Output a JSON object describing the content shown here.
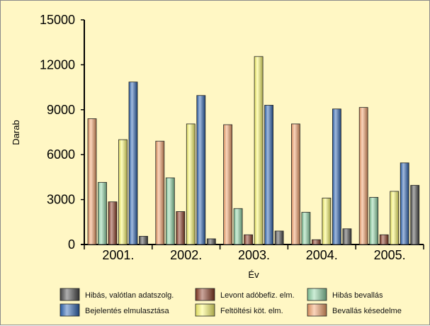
{
  "chart_data": {
    "type": "bar",
    "title": "",
    "xlabel": "Év",
    "ylabel": "Darab",
    "ylim": [
      0,
      15000
    ],
    "yticks": [
      0,
      3000,
      6000,
      9000,
      12000,
      15000
    ],
    "yticks_text": [
      "0",
      "3000",
      "6000",
      "9000",
      "12000",
      "15000"
    ],
    "grid": false,
    "legend_position": "bottom",
    "categories": [
      "2001.",
      "2002.",
      "2003.",
      "2004.",
      "2005."
    ],
    "series": [
      {
        "name": "Bevallás késedelme",
        "color": "#f6a26a",
        "values": [
          8400,
          6900,
          8000,
          8050,
          9150
        ]
      },
      {
        "name": "Hibás bevallás",
        "color": "#8fd6a6",
        "values": [
          4150,
          4450,
          2400,
          2150,
          3150
        ]
      },
      {
        "name": "Levont adóbefiz. elm.",
        "color": "#8b3a22",
        "values": [
          2850,
          2200,
          650,
          320,
          650
        ]
      },
      {
        "name": "Feltöltési köt. elm.",
        "color": "#fffc6e",
        "values": [
          7000,
          8050,
          12550,
          3100,
          3550
        ]
      },
      {
        "name": "Bejelentés elmulasztása",
        "color": "#2e66b6",
        "values": [
          10850,
          9950,
          9300,
          9050,
          5450
        ]
      },
      {
        "name": "Hibás, valótlan adatszolg.",
        "color": "#4c4c4c",
        "values": [
          550,
          380,
          900,
          1050,
          3950
        ]
      }
    ],
    "legend_order": [
      "Hibás, valótlan adatszolg.",
      "Levont adóbefiz. elm.",
      "Hibás bevallás",
      "Bejelentés elmulasztása",
      "Feltöltési köt. elm.",
      "Bevallás késedelme"
    ]
  }
}
